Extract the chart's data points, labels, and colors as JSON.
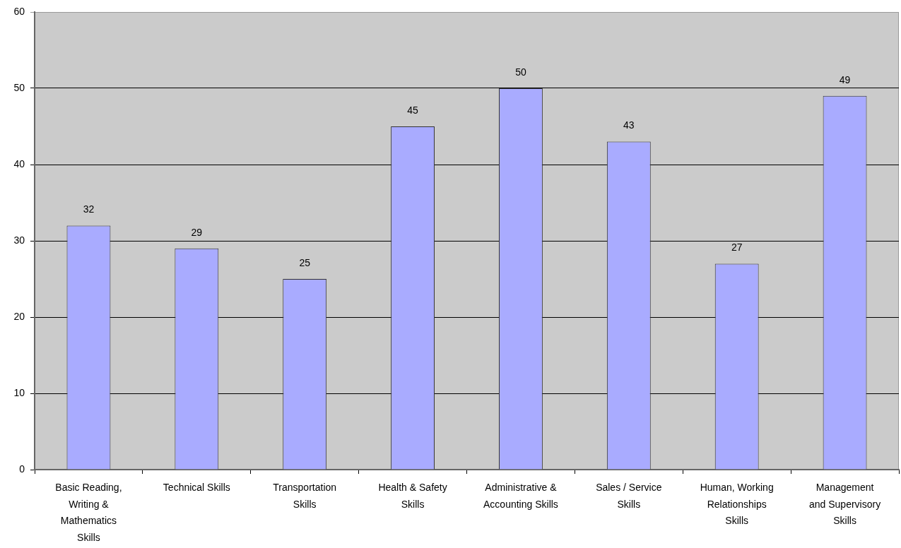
{
  "chart_data": {
    "type": "bar",
    "categories": [
      "Basic Reading, Writing & Mathematics Skills",
      "Technical Skills",
      "Transportation Skills",
      "Health & Safety Skills",
      "Administrative & Accounting Skills",
      "Sales / Service Skills",
      "Human, Working Relationships Skills",
      "Management and Supervisory Skills"
    ],
    "values": [
      32,
      29,
      25,
      45,
      50,
      43,
      27,
      49
    ],
    "color": "#a9abff",
    "ylim": [
      0,
      60
    ],
    "yticks": [
      0,
      10,
      20,
      30,
      40,
      50,
      60
    ],
    "grid": "y",
    "data_labels": true
  }
}
